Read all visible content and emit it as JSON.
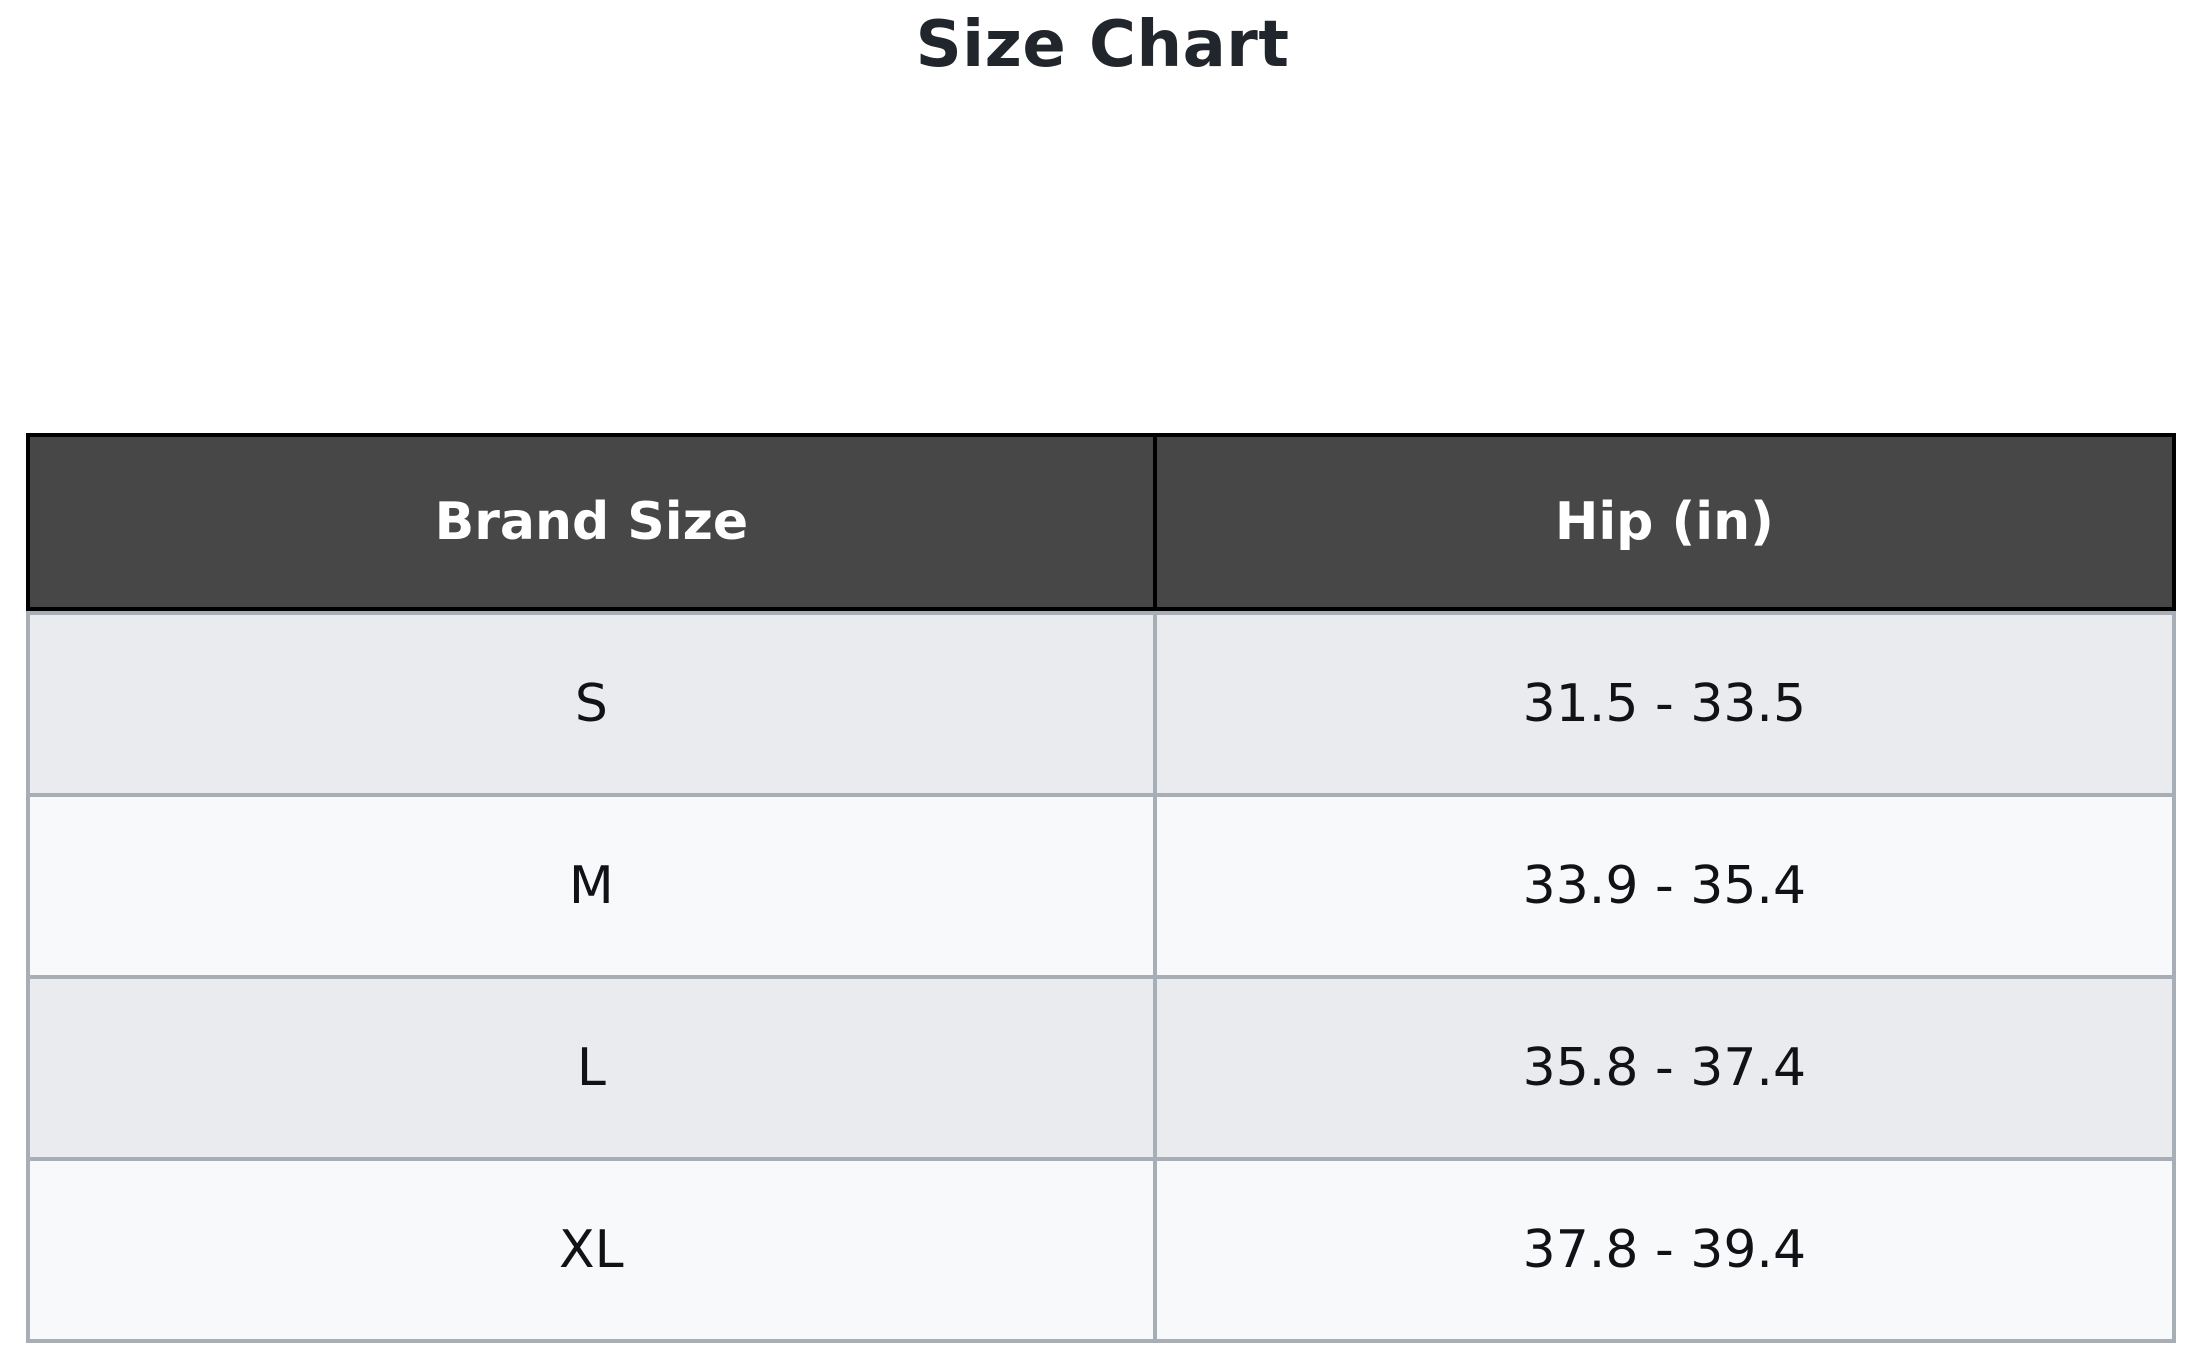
{
  "title": "Size Chart",
  "table": {
    "columns": [
      "Brand Size",
      "Hip (in)"
    ],
    "rows": [
      {
        "brand_size": "S",
        "hip_in": "31.5 - 33.5"
      },
      {
        "brand_size": "M",
        "hip_in": "33.9 - 35.4"
      },
      {
        "brand_size": "L",
        "hip_in": "35.8 - 37.4"
      },
      {
        "brand_size": "XL",
        "hip_in": "37.8 - 39.4"
      }
    ]
  },
  "colors": {
    "header_bg": "#474747",
    "header_text": "#ffffff",
    "header_border": "#000000",
    "grid_border": "#a7aeb6",
    "row_odd_bg": "#e9ebee",
    "row_even_bg": "#f8f9fb",
    "cell_text": "#101215",
    "title_text": "#21252c",
    "page_bg": "#ffffff"
  },
  "chart_data": {
    "type": "table",
    "title": "Size Chart",
    "columns": [
      "Brand Size",
      "Hip (in)"
    ],
    "rows": [
      [
        "S",
        "31.5 - 33.5"
      ],
      [
        "M",
        "33.9 - 35.4"
      ],
      [
        "L",
        "35.8 - 37.4"
      ],
      [
        "XL",
        "37.8 - 39.4"
      ]
    ],
    "hip_ranges_numeric": [
      {
        "size": "S",
        "min": 31.5,
        "max": 33.5
      },
      {
        "size": "M",
        "min": 33.9,
        "max": 35.4
      },
      {
        "size": "L",
        "min": 35.8,
        "max": 37.4
      },
      {
        "size": "XL",
        "min": 37.8,
        "max": 39.4
      }
    ]
  }
}
